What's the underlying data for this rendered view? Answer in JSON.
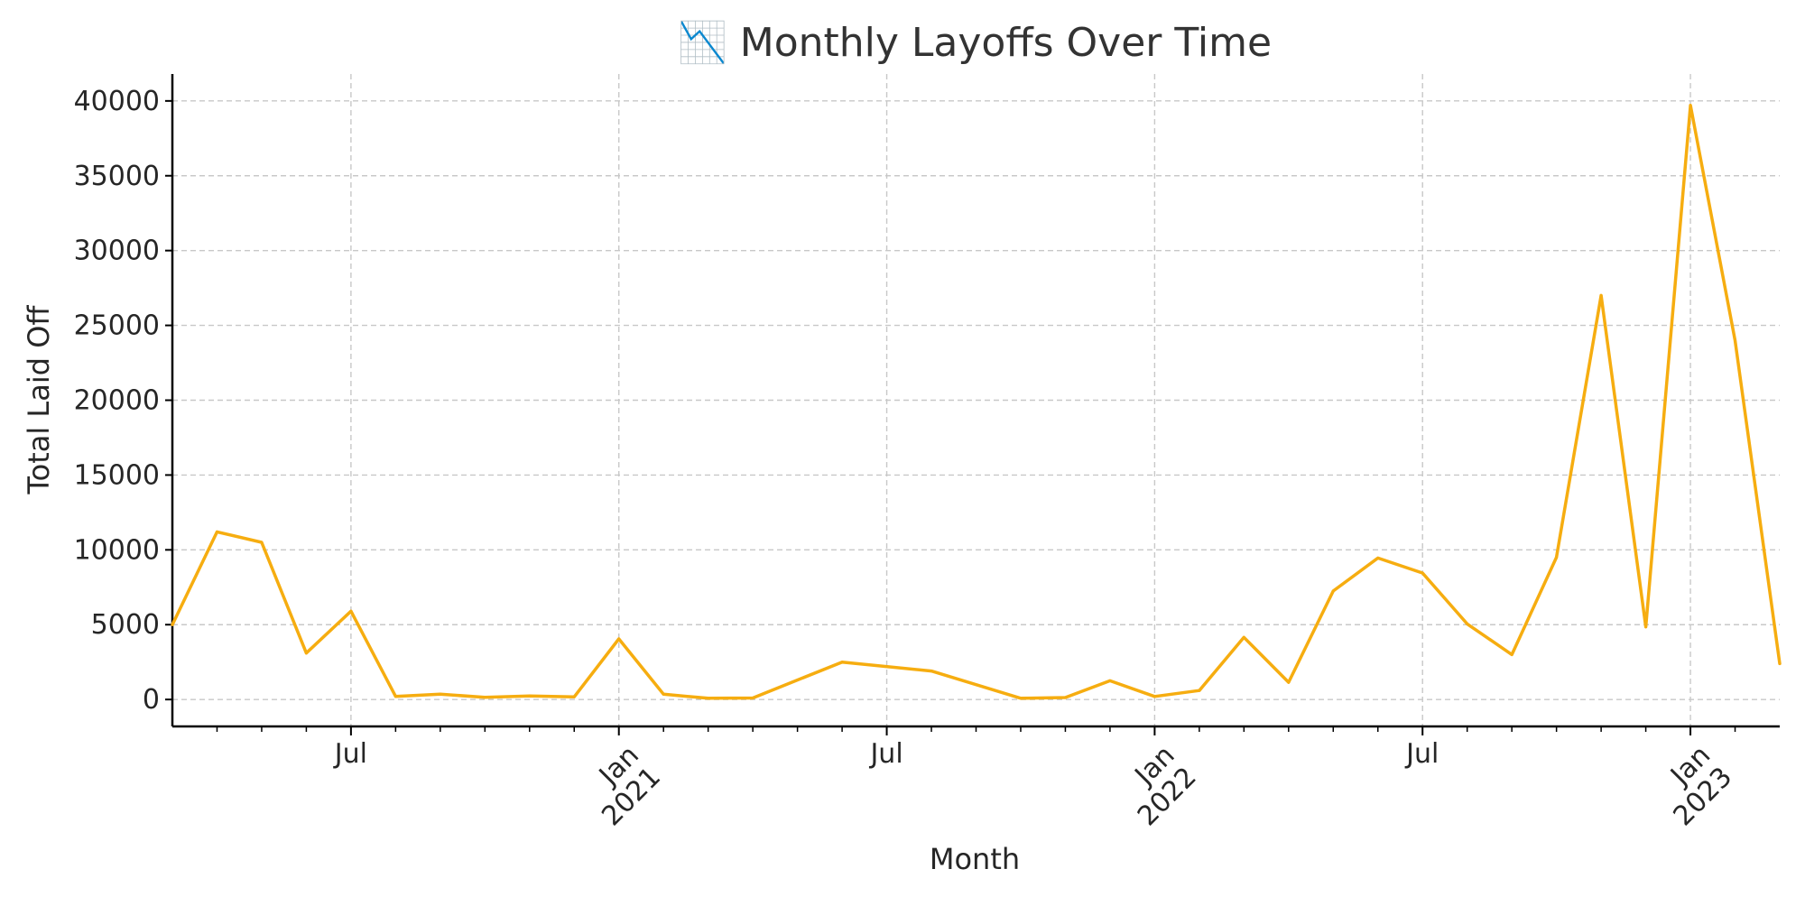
{
  "chart_data": {
    "type": "line",
    "title": "📉 Monthly Layoffs Over Time",
    "xlabel": "Month",
    "ylabel": "Total Laid Off",
    "x": [
      "2020-03",
      "2020-04",
      "2020-05",
      "2020-06",
      "2020-07",
      "2020-08",
      "2020-09",
      "2020-10",
      "2020-11",
      "2020-12",
      "2021-01",
      "2021-02",
      "2021-03",
      "2021-04",
      "2021-06",
      "2021-08",
      "2021-10",
      "2021-11",
      "2021-12",
      "2022-01",
      "2022-02",
      "2022-03",
      "2022-04",
      "2022-05",
      "2022-06",
      "2022-07",
      "2022-08",
      "2022-09",
      "2022-10",
      "2022-11",
      "2022-12",
      "2023-01",
      "2023-02",
      "2023-03"
    ],
    "series": [
      {
        "color": "#f6ad10",
        "values": [
          5000,
          11200,
          10500,
          3100,
          5900,
          200,
          350,
          150,
          230,
          180,
          4050,
          350,
          80,
          100,
          2500,
          1900,
          80,
          130,
          1250,
          200,
          600,
          4150,
          1150,
          7250,
          9450,
          8450,
          5050,
          3000,
          9500,
          27000,
          4850,
          39700,
          24000,
          2400
        ]
      }
    ],
    "ylim": [
      -1800,
      41800
    ],
    "xlim": [
      "2020-03",
      "2023-03"
    ],
    "y_ticks": [
      "0",
      "5000",
      "10000",
      "15000",
      "20000",
      "25000",
      "30000",
      "35000",
      "40000"
    ],
    "x_major_ticks": [
      {
        "date": "2020-07",
        "label_lines": [
          "Jul"
        ],
        "rotated": false
      },
      {
        "date": "2021-01",
        "label_lines": [
          "Jan",
          "2021"
        ],
        "rotated": true
      },
      {
        "date": "2021-07",
        "label_lines": [
          "Jul"
        ],
        "rotated": false
      },
      {
        "date": "2022-01",
        "label_lines": [
          "Jan",
          "2022"
        ],
        "rotated": true
      },
      {
        "date": "2022-07",
        "label_lines": [
          "Jul"
        ],
        "rotated": false
      },
      {
        "date": "2023-01",
        "label_lines": [
          "Jan",
          "2023"
        ],
        "rotated": true
      }
    ],
    "x_minor_ticks": [
      "2020-04",
      "2020-05",
      "2020-06",
      "2020-08",
      "2020-09",
      "2020-10",
      "2020-11",
      "2020-12",
      "2021-02",
      "2021-03",
      "2021-04",
      "2021-05",
      "2021-06",
      "2021-08",
      "2021-09",
      "2021-10",
      "2021-11",
      "2021-12",
      "2022-02",
      "2022-03",
      "2022-04",
      "2022-05",
      "2022-06",
      "2022-08",
      "2022-09",
      "2022-10",
      "2022-11",
      "2022-12",
      "2023-02"
    ],
    "grid": true,
    "legend": false,
    "colors": {
      "line": "#f6ad10",
      "grid": "#c8c8c8",
      "axis": "#000000",
      "title": "#333333"
    }
  }
}
